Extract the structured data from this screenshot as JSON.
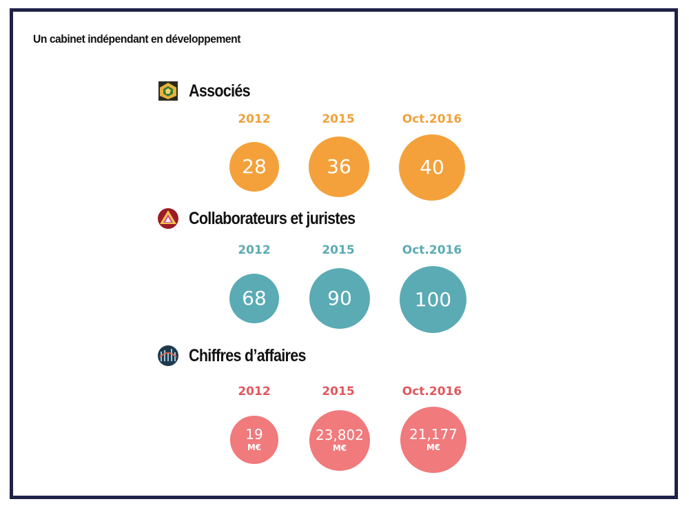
{
  "title": "Un cabinet indépendant en développement",
  "sections": [
    {
      "title": "Associés",
      "icon": "geometric-pattern-icon",
      "color": "#f4a13b",
      "items": [
        {
          "year": "2012",
          "value": "28"
        },
        {
          "year": "2015",
          "value": "36"
        },
        {
          "year": "Oct.2016",
          "value": "40"
        }
      ]
    },
    {
      "title": "Collaborateurs et juristes",
      "icon": "triangle-pattern-icon",
      "color": "#5aabb4",
      "items": [
        {
          "year": "2012",
          "value": "68"
        },
        {
          "year": "2015",
          "value": "90"
        },
        {
          "year": "Oct.2016",
          "value": "100"
        }
      ]
    },
    {
      "title": "Chiffres d’affaires",
      "icon": "chart-pattern-icon",
      "color": "#f07a7c",
      "items": [
        {
          "year": "2012",
          "value": "19",
          "unit": "M€"
        },
        {
          "year": "2015",
          "value": "23,802",
          "unit": "M€"
        },
        {
          "year": "Oct.2016",
          "value": "21,177",
          "unit": "M€"
        }
      ]
    }
  ]
}
